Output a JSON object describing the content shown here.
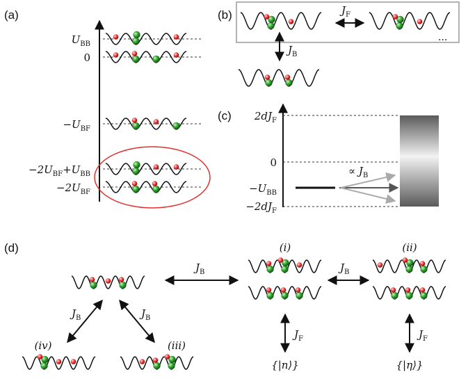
{
  "panels": {
    "a": "(a)",
    "b": "(b)",
    "c": "(c)",
    "d": "(d)"
  },
  "panel_a": {
    "levels": [
      {
        "pre": "U",
        "sub": "BB",
        "post": ""
      },
      {
        "pre": "0",
        "sub": "",
        "post": ""
      },
      {
        "pre": "−U",
        "sub": "BF",
        "post": ""
      },
      {
        "pre": "−2U",
        "sub": "BF",
        "post": "+U",
        "sub2": "BB"
      },
      {
        "pre": "−2U",
        "sub": "BF",
        "post": ""
      }
    ]
  },
  "panel_b": {
    "hop_f": "J",
    "hop_f_sub": "F",
    "hop_b": "J",
    "hop_b_sub": "B",
    "ellipsis": "..."
  },
  "panel_c": {
    "ticks": [
      {
        "pre": "2dJ",
        "sub": "F"
      },
      {
        "pre": "0",
        "sub": ""
      },
      {
        "pre": "−U",
        "sub": "BB"
      },
      {
        "pre": "−2dJ",
        "sub": "F"
      }
    ],
    "prop_label": "∝ J",
    "prop_sub": "B"
  },
  "panel_d": {
    "state_labels": [
      "(i)",
      "(ii)",
      "(iii)",
      "(iv)"
    ],
    "hop_b": "J",
    "hop_b_sub": "B",
    "hop_f": "J",
    "hop_f_sub": "F",
    "set_n": "{|n⟩}",
    "set_eta": "{|η⟩}"
  }
}
